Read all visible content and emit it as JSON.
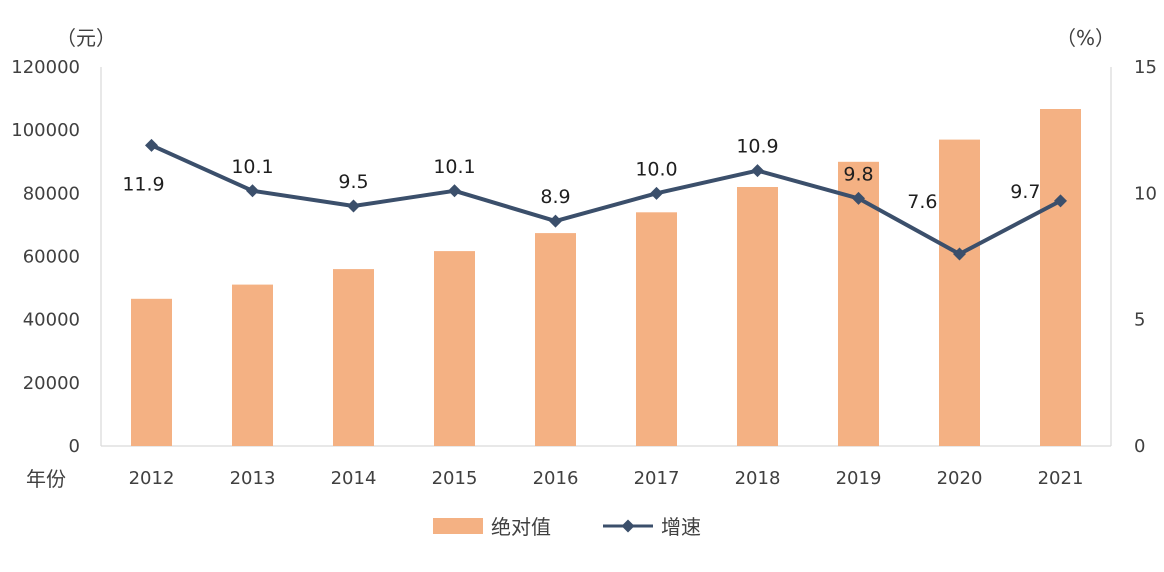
{
  "chart_data": {
    "type": "bar",
    "categories": [
      "2012",
      "2013",
      "2014",
      "2015",
      "2016",
      "2017",
      "2018",
      "2019",
      "2020",
      "2021"
    ],
    "x_axis_label": "年份",
    "left_unit": "（元）",
    "right_unit": "（%）",
    "ylim_left": [
      0,
      120000
    ],
    "yticks_left": [
      "0",
      "20000",
      "40000",
      "60000",
      "80000",
      "100000",
      "120000"
    ],
    "ylim_right": [
      0,
      15
    ],
    "yticks_right": [
      "0",
      "5",
      "10",
      "15"
    ],
    "grid": false,
    "legend_position": "bottom",
    "series": [
      {
        "name": "绝对值",
        "type": "bar",
        "axis": "left",
        "color": "#F4B183",
        "values": [
          46600,
          51100,
          56000,
          61700,
          67400,
          74000,
          82000,
          90000,
          97000,
          106700
        ]
      },
      {
        "name": "增速",
        "type": "line",
        "axis": "right",
        "color": "#3B4F6B",
        "marker": "diamond",
        "values": [
          11.9,
          10.1,
          9.5,
          10.1,
          8.9,
          10.0,
          10.9,
          9.8,
          7.6,
          9.7
        ],
        "labels": [
          "11.9",
          "10.1",
          "9.5",
          "10.1",
          "8.9",
          "10.0",
          "10.9",
          "9.8",
          "7.6",
          "9.7"
        ]
      }
    ]
  }
}
